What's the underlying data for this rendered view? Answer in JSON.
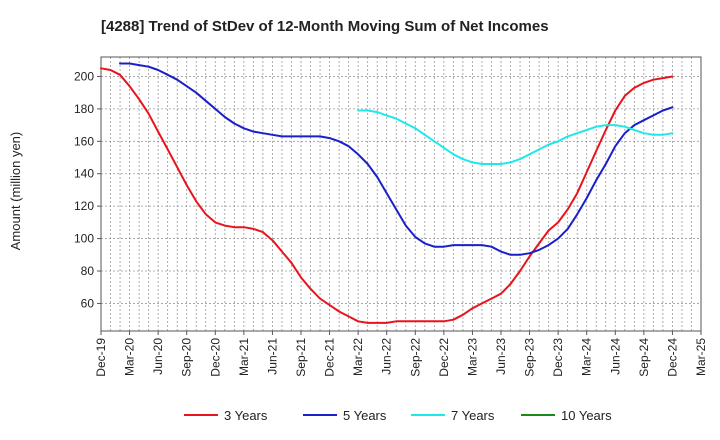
{
  "chart_data": {
    "type": "line",
    "title": "[4288]  Trend of StDev of 12-Month Moving Sum of Net Incomes",
    "ylabel": "Amount (million yen)",
    "xlabel": "",
    "ylim": [
      43,
      212
    ],
    "yticks": [
      60,
      80,
      100,
      120,
      140,
      160,
      180,
      200
    ],
    "xlim": [
      "Dec-19",
      "Mar-25"
    ],
    "xticks": [
      "Dec-19",
      "Mar-20",
      "Jun-20",
      "Sep-20",
      "Dec-20",
      "Mar-21",
      "Jun-21",
      "Sep-21",
      "Dec-21",
      "Mar-22",
      "Jun-22",
      "Sep-22",
      "Dec-22",
      "Mar-23",
      "Jun-23",
      "Sep-23",
      "Dec-23",
      "Mar-24",
      "Jun-24",
      "Sep-24",
      "Dec-24",
      "Mar-25"
    ],
    "grid": true,
    "legend_position": "bottom",
    "series": [
      {
        "name": "3 Years",
        "color": "#e8141d",
        "x": [
          "Dec-19",
          "Jan-20",
          "Feb-20",
          "Mar-20",
          "Apr-20",
          "May-20",
          "Jun-20",
          "Jul-20",
          "Aug-20",
          "Sep-20",
          "Oct-20",
          "Nov-20",
          "Dec-20",
          "Jan-21",
          "Feb-21",
          "Mar-21",
          "Apr-21",
          "May-21",
          "Jun-21",
          "Jul-21",
          "Aug-21",
          "Sep-21",
          "Oct-21",
          "Nov-21",
          "Dec-21",
          "Jan-22",
          "Feb-22",
          "Mar-22",
          "Apr-22",
          "May-22",
          "Jun-22",
          "Jul-22",
          "Aug-22",
          "Sep-22",
          "Oct-22",
          "Nov-22",
          "Dec-22",
          "Jan-23",
          "Feb-23",
          "Mar-23",
          "Apr-23",
          "May-23",
          "Jun-23",
          "Jul-23",
          "Aug-23",
          "Sep-23",
          "Oct-23",
          "Nov-23",
          "Dec-23",
          "Jan-24",
          "Feb-24",
          "Mar-24",
          "Apr-24",
          "May-24",
          "Jun-24",
          "Jul-24",
          "Aug-24",
          "Sep-24",
          "Oct-24",
          "Nov-24",
          "Dec-24"
        ],
        "values": [
          205,
          204,
          201,
          194,
          186,
          177,
          166,
          155,
          144,
          133,
          123,
          115,
          110,
          108,
          107,
          107,
          106,
          104,
          99,
          92,
          85,
          76,
          69,
          63,
          59,
          55,
          52,
          49,
          48,
          48,
          48,
          49,
          49,
          49,
          49,
          49,
          49,
          50,
          53,
          57,
          60,
          63,
          66,
          72,
          80,
          89,
          97,
          105,
          110,
          118,
          128,
          141,
          154,
          167,
          179,
          188,
          193,
          196,
          198,
          199,
          200
        ]
      },
      {
        "name": "5 Years",
        "color": "#1a1fc9",
        "x": [
          "Feb-20",
          "Mar-20",
          "Apr-20",
          "May-20",
          "Jun-20",
          "Jul-20",
          "Aug-20",
          "Sep-20",
          "Oct-20",
          "Nov-20",
          "Dec-20",
          "Jan-21",
          "Feb-21",
          "Mar-21",
          "Apr-21",
          "May-21",
          "Jun-21",
          "Jul-21",
          "Aug-21",
          "Sep-21",
          "Oct-21",
          "Nov-21",
          "Dec-21",
          "Jan-22",
          "Feb-22",
          "Mar-22",
          "Apr-22",
          "May-22",
          "Jun-22",
          "Jul-22",
          "Aug-22",
          "Sep-22",
          "Oct-22",
          "Nov-22",
          "Dec-22",
          "Jan-23",
          "Feb-23",
          "Mar-23",
          "Apr-23",
          "May-23",
          "Jun-23",
          "Jul-23",
          "Aug-23",
          "Sep-23",
          "Oct-23",
          "Nov-23",
          "Dec-23",
          "Jan-24",
          "Feb-24",
          "Mar-24",
          "Apr-24",
          "May-24",
          "Jun-24",
          "Jul-24",
          "Aug-24",
          "Sep-24",
          "Oct-24",
          "Nov-24",
          "Dec-24"
        ],
        "values": [
          208,
          208,
          207,
          206,
          204,
          201,
          198,
          194,
          190,
          185,
          180,
          175,
          171,
          168,
          166,
          165,
          164,
          163,
          163,
          163,
          163,
          163,
          162,
          160,
          157,
          152,
          146,
          138,
          128,
          118,
          108,
          101,
          97,
          95,
          95,
          96,
          96,
          96,
          96,
          95,
          92,
          90,
          90,
          91,
          93,
          96,
          100,
          106,
          115,
          125,
          136,
          146,
          157,
          165,
          170,
          173,
          176,
          179,
          181
        ]
      },
      {
        "name": "7 Years",
        "color": "#1ee8ea",
        "x": [
          "Mar-22",
          "Apr-22",
          "May-22",
          "Jun-22",
          "Jul-22",
          "Aug-22",
          "Sep-22",
          "Oct-22",
          "Nov-22",
          "Dec-22",
          "Jan-23",
          "Feb-23",
          "Mar-23",
          "Apr-23",
          "May-23",
          "Jun-23",
          "Jul-23",
          "Aug-23",
          "Sep-23",
          "Oct-23",
          "Nov-23",
          "Dec-23",
          "Jan-24",
          "Feb-24",
          "Mar-24",
          "Apr-24",
          "May-24",
          "Jun-24",
          "Jul-24",
          "Aug-24",
          "Sep-24",
          "Oct-24",
          "Nov-24",
          "Dec-24"
        ],
        "values": [
          179,
          179,
          178,
          176,
          174,
          171,
          168,
          164,
          160,
          156,
          152,
          149,
          147,
          146,
          146,
          146,
          147,
          149,
          152,
          155,
          158,
          160,
          163,
          165,
          167,
          169,
          170,
          170,
          169,
          167,
          165,
          164,
          164,
          165
        ]
      },
      {
        "name": "10 Years",
        "color": "#1a8a1a",
        "x": [],
        "values": []
      }
    ]
  }
}
